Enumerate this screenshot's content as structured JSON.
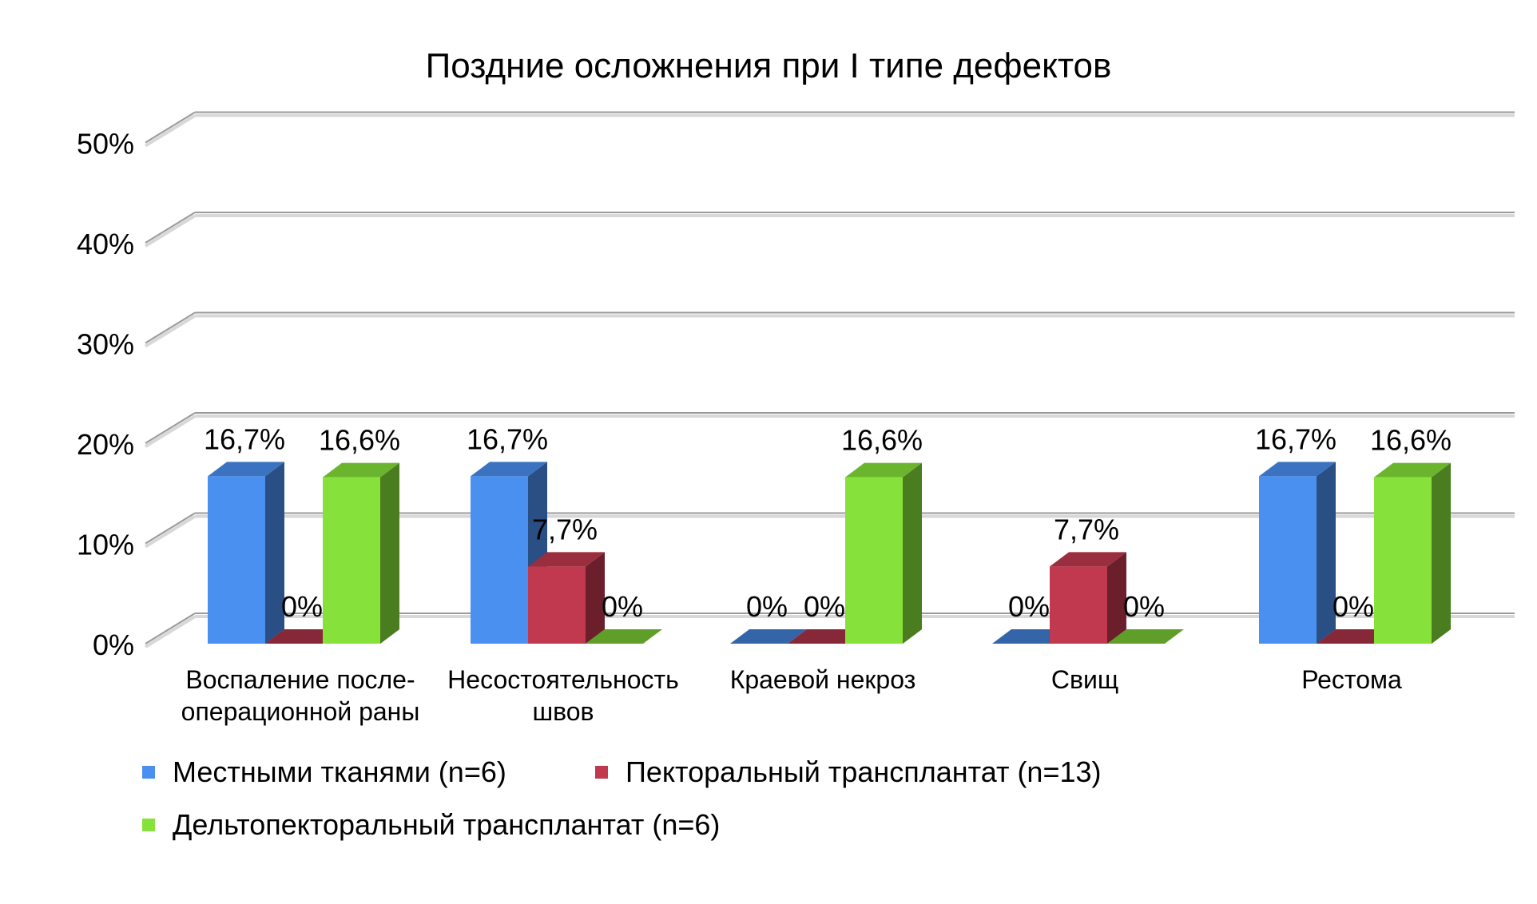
{
  "chart_data": {
    "type": "bar",
    "title": "Поздние осложнения при I типе дефектов",
    "categories": [
      [
        "Воспаление после-",
        "операционной раны"
      ],
      [
        "Несостоятельность",
        "швов"
      ],
      [
        "Краевой некроз"
      ],
      [
        "Свищ"
      ],
      [
        "Рестома"
      ]
    ],
    "series": [
      {
        "name": "Местными тканями (n=6)",
        "values": [
          16.7,
          16.7,
          0,
          0,
          16.7
        ],
        "labels": [
          "16,7%",
          "16,7%",
          "0%",
          "0%",
          "16,7%"
        ],
        "color": "#4a90f0"
      },
      {
        "name": "Пекторальный трансплантат (n=13)",
        "values": [
          0,
          7.7,
          0,
          7.7,
          0
        ],
        "labels": [
          "0%",
          "7,7%",
          "0%",
          "7,7%",
          "0%"
        ],
        "color": "#c0394f"
      },
      {
        "name": "Дельтопекторальный трансплантат (n=6)",
        "values": [
          16.6,
          0,
          16.6,
          0,
          16.6
        ],
        "labels": [
          "16,6%",
          "0%",
          "16,6%",
          "0%",
          "16,6%"
        ],
        "color": "#86e23a"
      }
    ],
    "yticks": [
      "0%",
      "10%",
      "20%",
      "30%",
      "40%",
      "50%"
    ],
    "ylim": [
      0,
      50
    ],
    "grid": true,
    "legend_position": "bottom",
    "projection": "3d-clustered-column"
  }
}
